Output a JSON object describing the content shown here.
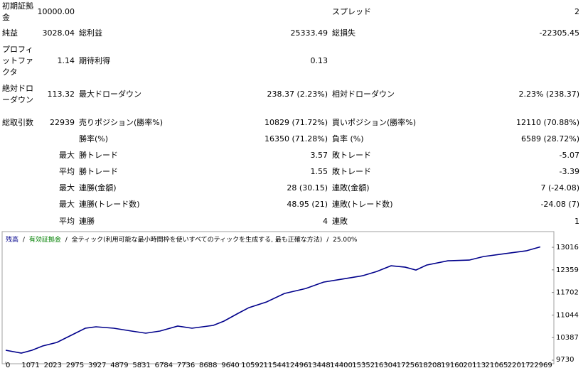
{
  "report": {
    "rows": [
      {
        "a": [
          "初期証拠金",
          "10000.00"
        ],
        "c": [
          "スプレッド",
          "2"
        ]
      },
      {
        "a": [
          "純益",
          "3028.04"
        ],
        "b": [
          "総利益",
          "25333.49"
        ],
        "c": [
          "総損失",
          "-22305.45"
        ]
      },
      {
        "a": [
          "プロフィットファクタ",
          "1.14"
        ],
        "b": [
          "期待利得",
          "0.13"
        ]
      },
      {
        "a": [
          "絶対ドローダウン",
          "113.32"
        ],
        "b": [
          "最大ドローダウン",
          "238.37 (2.23%)"
        ],
        "c": [
          "相対ドローダウン",
          "2.23% (238.37)"
        ]
      },
      {
        "a": [
          "総取引数",
          "22939"
        ],
        "b": [
          "売りポジション(勝率%)",
          "10829 (71.72%)"
        ],
        "c": [
          "買いポジション(勝率%)",
          "12110 (70.88%)"
        ]
      },
      {
        "b": [
          "勝率(%)",
          "16350 (71.28%)"
        ],
        "c": [
          "負率 (%)",
          "6589 (28.72%)"
        ]
      },
      {
        "prefix": "最大",
        "b": [
          "勝トレード",
          "3.57"
        ],
        "c": [
          "敗トレード",
          "-5.07"
        ]
      },
      {
        "prefix": "平均",
        "b": [
          "勝トレード",
          "1.55"
        ],
        "c": [
          "敗トレード",
          "-3.39"
        ]
      },
      {
        "prefix": "最大",
        "b": [
          "連勝(金額)",
          "28 (30.15)"
        ],
        "c": [
          "連敗(金額)",
          "7 (-24.08)"
        ]
      },
      {
        "prefix": "最大",
        "b": [
          "連勝(トレード数)",
          "48.95 (21)"
        ],
        "c": [
          "連敗(トレード数)",
          "-24.08 (7)"
        ]
      },
      {
        "prefix": "平均",
        "b": [
          "連勝",
          "4"
        ],
        "c": [
          "連敗",
          "1"
        ]
      }
    ]
  },
  "chart_data": {
    "type": "line",
    "legend": [
      {
        "name": "残高",
        "color": "#00008b"
      },
      {
        "name": "有効証拠金",
        "color": "#008000"
      }
    ],
    "separator": "/",
    "model": "全ティック(利用可能な最小時間枠を使いすべてのティックを生成する, 最も正確な方法)",
    "quality": "25.00%",
    "x": [
      0,
      671,
      1129,
      1586,
      2197,
      2807,
      3417,
      3875,
      4637,
      5400,
      6010,
      6620,
      7383,
      7993,
      8908,
      9366,
      9976,
      10434,
      11196,
      11959,
      12874,
      13637,
      14400,
      15315,
      15925,
      16536,
      17146,
      17603,
      18061,
      18976,
      19891,
      20502,
      21417,
      22332,
      22939
    ],
    "series": [
      {
        "name": "残高",
        "color": "#00008b",
        "values": [
          10019,
          9937,
          10019,
          10143,
          10247,
          10453,
          10660,
          10701,
          10660,
          10577,
          10515,
          10577,
          10722,
          10660,
          10743,
          10867,
          11094,
          11259,
          11425,
          11672,
          11817,
          12003,
          12086,
          12189,
          12313,
          12478,
          12437,
          12354,
          12499,
          12623,
          12643,
          12747,
          12830,
          12912,
          13028
        ]
      }
    ],
    "xlim": [
      0,
      23400
    ],
    "xticks": [
      0,
      1071,
      2023,
      2975,
      3927,
      4879,
      5831,
      6784,
      7736,
      8688,
      9640,
      10592,
      11544,
      12496,
      13448,
      14400,
      15352,
      16304,
      17256,
      18208,
      19160,
      20113,
      21065,
      22017,
      22969
    ],
    "ylim": [
      9730,
      13390
    ],
    "yticks": [
      9730,
      10387,
      11044,
      11702,
      12359,
      13016
    ],
    "grid": false
  }
}
